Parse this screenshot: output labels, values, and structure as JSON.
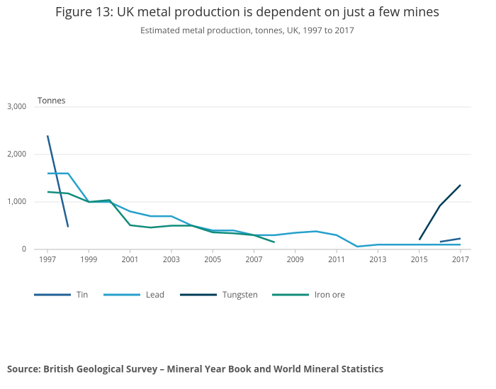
{
  "chart_data": {
    "type": "line",
    "title": "Figure 13: UK metal production is dependent on just a few mines",
    "subtitle": "Estimated metal production, tonnes, UK, 1997 to 2017",
    "y_label": "Tonnes",
    "source": "Source: British Geological Survey – Mineral Year Book and World Mineral Statistics",
    "x": [
      1997,
      1998,
      1999,
      2000,
      2001,
      2002,
      2003,
      2004,
      2005,
      2006,
      2007,
      2008,
      2009,
      2010,
      2011,
      2012,
      2013,
      2014,
      2015,
      2016,
      2017
    ],
    "xlim": [
      1997,
      2017
    ],
    "xticks": [
      1997,
      1999,
      2001,
      2003,
      2005,
      2007,
      2009,
      2011,
      2013,
      2015,
      2017
    ],
    "ylim": [
      0,
      3000
    ],
    "yticks": [
      0,
      {
        "value": 1000,
        "label": "1,000"
      },
      {
        "value": 2000,
        "label": "2,000"
      },
      {
        "value": 3000,
        "label": "3,000"
      }
    ],
    "grid": true,
    "legend": "bottom",
    "series": [
      {
        "name": "Tin",
        "color": "#206095",
        "values": [
          2400,
          470,
          null,
          null,
          null,
          null,
          null,
          null,
          null,
          null,
          null,
          null,
          null,
          null,
          null,
          null,
          null,
          null,
          null,
          160,
          230
        ]
      },
      {
        "name": "Lead",
        "color": "#27a0cc",
        "values": [
          1600,
          1600,
          1000,
          1000,
          800,
          700,
          700,
          500,
          400,
          400,
          300,
          300,
          350,
          380,
          300,
          60,
          100,
          100,
          100,
          100,
          100
        ]
      },
      {
        "name": "Tungsten",
        "color": "#003c57",
        "values": [
          null,
          null,
          null,
          null,
          null,
          null,
          null,
          null,
          null,
          null,
          null,
          null,
          null,
          null,
          null,
          null,
          null,
          null,
          200,
          920,
          1360
        ]
      },
      {
        "name": "Iron ore",
        "color": "#118c7b",
        "values": [
          1210,
          1180,
          1000,
          1040,
          510,
          460,
          500,
          500,
          360,
          340,
          300,
          150,
          null,
          null,
          null,
          null,
          null,
          null,
          null,
          null,
          null
        ]
      }
    ]
  }
}
